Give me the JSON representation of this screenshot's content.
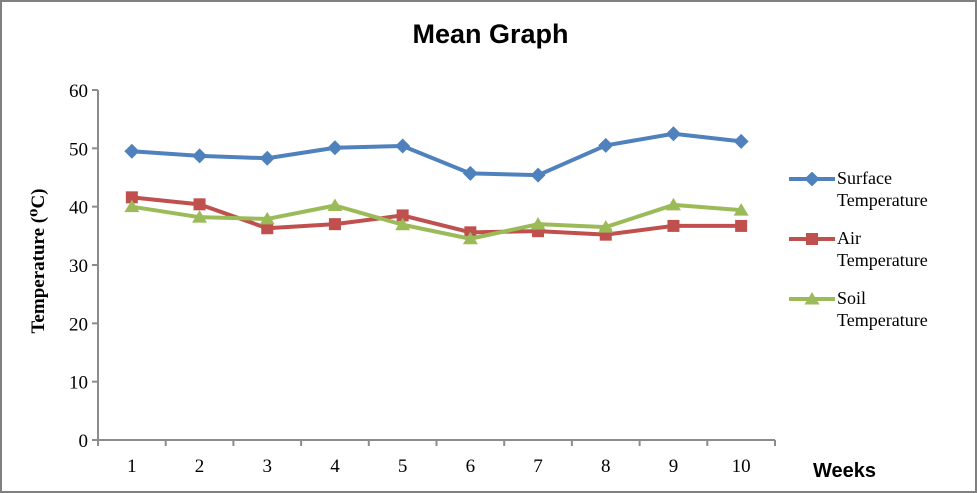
{
  "chart_data": {
    "type": "line",
    "title": "Mean Graph",
    "xlabel": "Weeks",
    "ylabel": "Temperature (⁰C)",
    "ylim": [
      0,
      60
    ],
    "yticks": [
      0,
      10,
      20,
      30,
      40,
      50,
      60
    ],
    "categories": [
      "1",
      "2",
      "3",
      "4",
      "5",
      "6",
      "7",
      "8",
      "9",
      "10"
    ],
    "grid": false,
    "legend_position": "right",
    "axis_color": "#8C8C8C",
    "text_color": "#000000",
    "series": [
      {
        "name": "Surface Temperature",
        "marker": "diamond",
        "color": "#4F81BD",
        "values": [
          49.5,
          48.7,
          48.3,
          50.1,
          50.4,
          45.7,
          45.4,
          50.5,
          52.5,
          51.2
        ]
      },
      {
        "name": "Air Temperature",
        "marker": "square",
        "color": "#C0504D",
        "values": [
          41.6,
          40.4,
          36.3,
          37.0,
          38.5,
          35.6,
          35.8,
          35.2,
          36.7,
          36.7
        ]
      },
      {
        "name": "Soil Temperature",
        "marker": "triangle",
        "color": "#9BBB59",
        "values": [
          40.0,
          38.2,
          37.9,
          40.2,
          36.9,
          34.5,
          37.0,
          36.5,
          40.3,
          39.4
        ]
      }
    ]
  }
}
